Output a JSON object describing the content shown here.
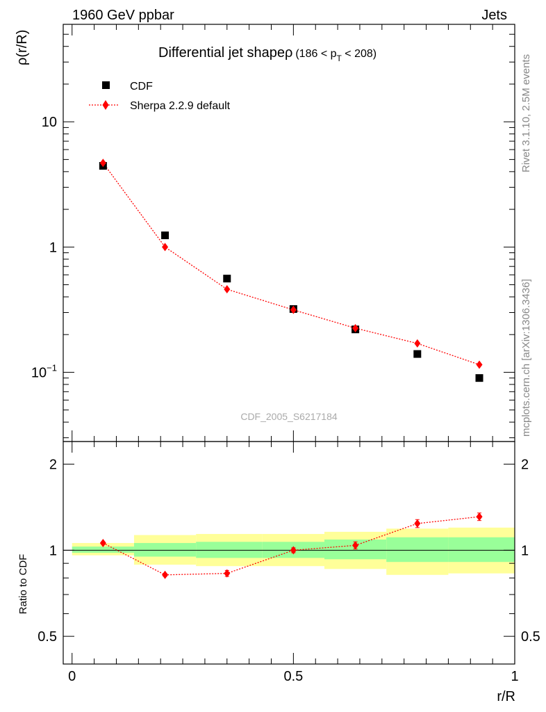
{
  "header": {
    "left": "1960 GeV ppbar",
    "right": "Jets"
  },
  "side_text": {
    "rivet": "Rivet 3.1.10,  2.5M events",
    "mcplots": "mcplots.cern.ch [arXiv:1306.3436]"
  },
  "chart_data": [
    {
      "type": "scatter",
      "title": "Differential jet shapeρ",
      "title_suffix": "(186 < p",
      "title_sub": "T",
      "title_end": " < 208)",
      "ylabel": "ρ(r/R)",
      "xlabel": "r/R",
      "watermark": "CDF_2005_S6217184",
      "y_scale": "log",
      "ylim": [
        0.028,
        60
      ],
      "xlim": [
        -0.02,
        1.0
      ],
      "y_ticks": [
        {
          "value": 0.1,
          "base": "10",
          "exp": "−1"
        },
        {
          "value": 1,
          "label": "1"
        },
        {
          "value": 10,
          "label": "10"
        }
      ],
      "legend_position": "top-left",
      "series": [
        {
          "name": "CDF",
          "marker": "square",
          "color": "#000000",
          "x": [
            0.07,
            0.21,
            0.35,
            0.5,
            0.64,
            0.78,
            0.92
          ],
          "y": [
            4.45,
            1.24,
            0.56,
            0.32,
            0.22,
            0.14,
            0.09
          ]
        },
        {
          "name": "Sherpa 2.2.9 default",
          "marker": "diamond",
          "line": "dotted",
          "color": "#ff0000",
          "x": [
            0.07,
            0.21,
            0.35,
            0.5,
            0.64,
            0.78,
            0.92
          ],
          "y": [
            4.7,
            1.0,
            0.46,
            0.315,
            0.225,
            0.17,
            0.115
          ]
        }
      ]
    },
    {
      "type": "scatter",
      "ylabel": "Ratio to CDF",
      "xlabel": "r/R",
      "xlim": [
        -0.02,
        1.0
      ],
      "ylim": [
        0.4,
        2.4
      ],
      "y_scale": "log",
      "x_ticks": [
        {
          "value": 0,
          "label": "0"
        },
        {
          "value": 0.5,
          "label": "0.5"
        },
        {
          "value": 1,
          "label": "1"
        }
      ],
      "y_ticks": [
        {
          "value": 0.5,
          "label": "0.5"
        },
        {
          "value": 1,
          "label": "1"
        },
        {
          "value": 2,
          "label": "2"
        }
      ],
      "reference_line": 1,
      "bands": {
        "bin_edges": [
          0.0,
          0.14,
          0.28,
          0.43,
          0.57,
          0.71,
          0.85,
          1.0
        ],
        "yellow_low": [
          0.96,
          0.89,
          0.88,
          0.88,
          0.86,
          0.82,
          0.83
        ],
        "yellow_high": [
          1.06,
          1.13,
          1.14,
          1.14,
          1.16,
          1.19,
          1.2
        ],
        "green_low": [
          0.98,
          0.95,
          0.94,
          0.94,
          0.93,
          0.91,
          0.91
        ],
        "green_high": [
          1.03,
          1.06,
          1.07,
          1.07,
          1.09,
          1.11,
          1.11
        ],
        "yellow_color": "#ffff99",
        "green_color": "#99ff99"
      },
      "series": [
        {
          "name": "Sherpa 2.2.9 default",
          "marker": "diamond",
          "line": "dotted",
          "color": "#ff0000",
          "x": [
            0.07,
            0.21,
            0.35,
            0.5,
            0.64,
            0.78,
            0.92
          ],
          "y": [
            1.06,
            0.82,
            0.83,
            1.0,
            1.04,
            1.24,
            1.31
          ],
          "err": [
            0.01,
            0.01,
            0.02,
            0.02,
            0.03,
            0.04,
            0.04
          ]
        }
      ]
    }
  ]
}
